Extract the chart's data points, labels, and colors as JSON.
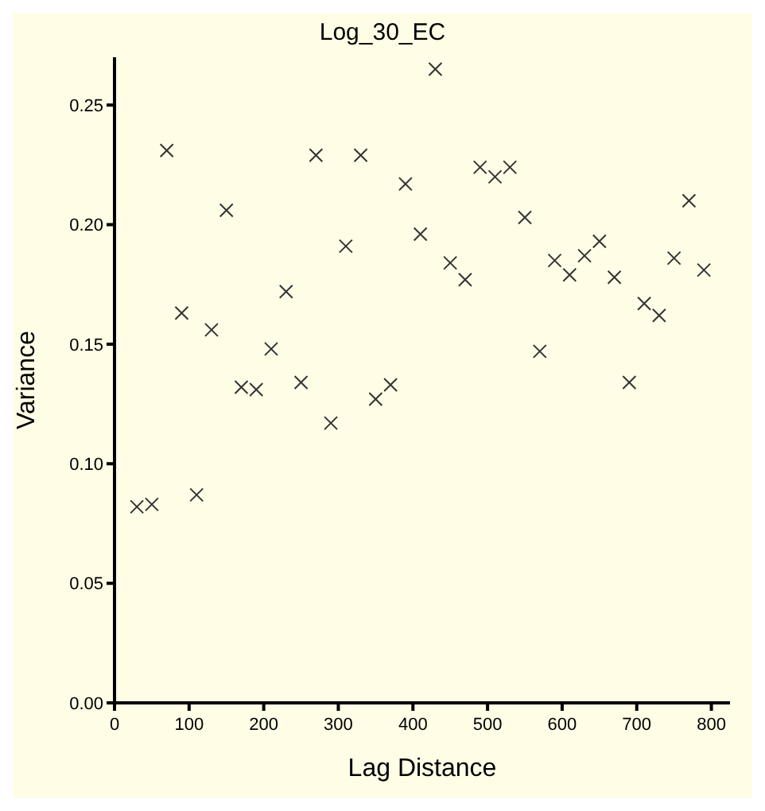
{
  "chart_data": {
    "type": "scatter",
    "title": "Log_30_EC",
    "xlabel": "Lag Distance",
    "ylabel": "Variance",
    "marker": "cross",
    "grid": false,
    "legend": false,
    "x": [
      30,
      50,
      70,
      90,
      110,
      130,
      150,
      170,
      190,
      210,
      230,
      250,
      270,
      290,
      310,
      330,
      350,
      370,
      390,
      410,
      430,
      450,
      470,
      490,
      510,
      530,
      550,
      570,
      590,
      610,
      630,
      650,
      670,
      690,
      710,
      730,
      750,
      770,
      790
    ],
    "series": [
      {
        "color": "#333333",
        "values": [
          0.082,
          0.083,
          0.231,
          0.163,
          0.087,
          0.156,
          0.206,
          0.132,
          0.131,
          0.148,
          0.172,
          0.134,
          0.229,
          0.117,
          0.191,
          0.229,
          0.127,
          0.133,
          0.217,
          0.196,
          0.265,
          0.184,
          0.177,
          0.224,
          0.22,
          0.224,
          0.203,
          0.147,
          0.185,
          0.179,
          0.187,
          0.193,
          0.178,
          0.134,
          0.167,
          0.162,
          0.186,
          0.21,
          0.181
        ]
      }
    ],
    "xlim": [
      0,
      825
    ],
    "xticks": [
      0,
      100,
      200,
      300,
      400,
      500,
      600,
      700,
      800
    ],
    "ylim": [
      0,
      0.27
    ],
    "yticks": [
      {
        "value": 0,
        "label": "0.00"
      },
      {
        "value": 0.05,
        "label": "0.05"
      },
      {
        "value": 0.1,
        "label": "0.10"
      },
      {
        "value": 0.15,
        "label": "0.15"
      },
      {
        "value": 0.2,
        "label": "0.20"
      },
      {
        "value": 0.25,
        "label": "0.25"
      }
    ]
  }
}
